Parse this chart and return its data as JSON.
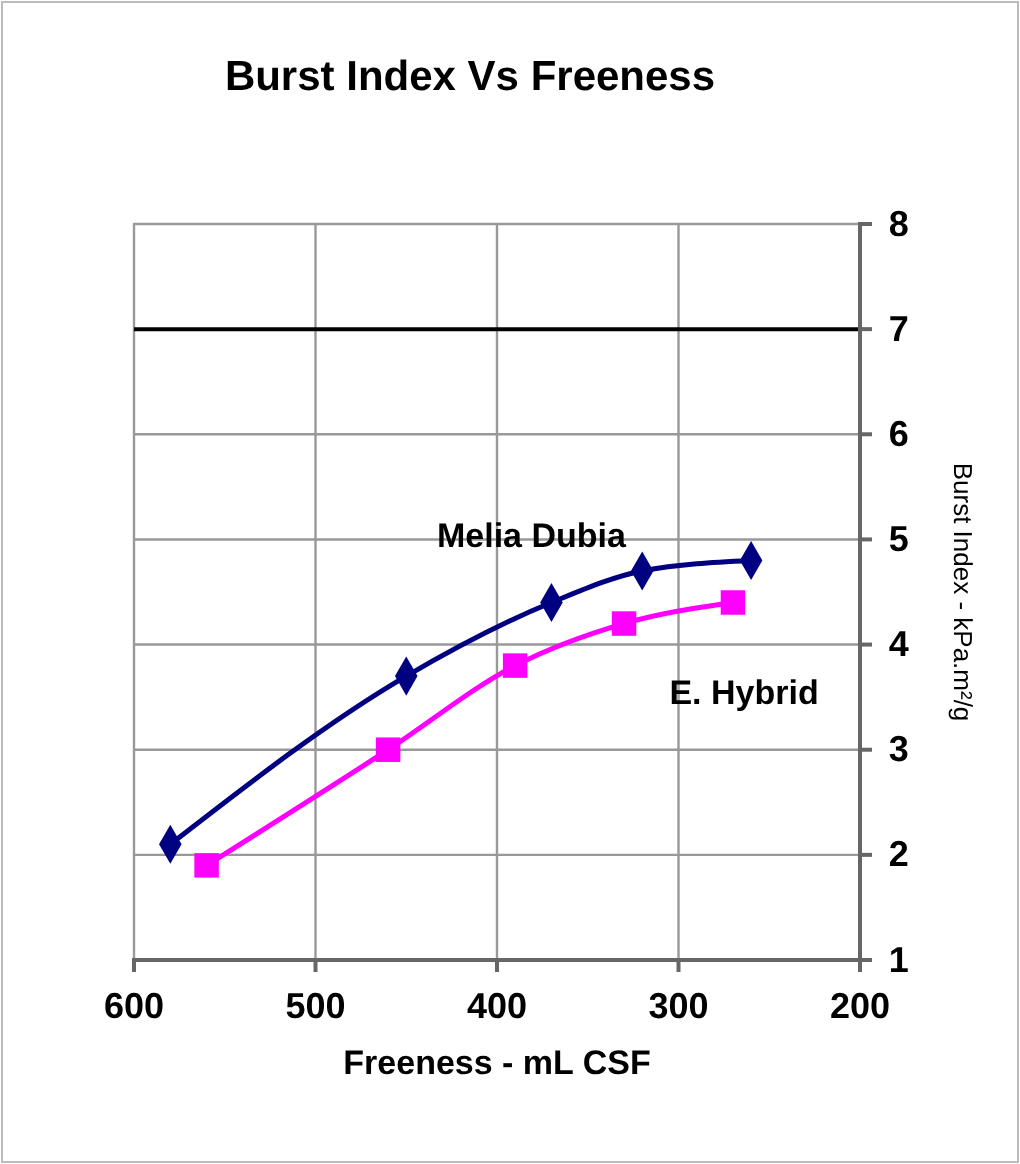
{
  "chart_data": {
    "type": "line",
    "title": "Burst Index Vs Freeness",
    "xlabel": "Freeness - mL CSF",
    "ylabel": "Burst Index - kPa.m²/g",
    "xlim": [
      600,
      200
    ],
    "xticks": [
      600,
      500,
      400,
      300,
      200
    ],
    "ylim": [
      1,
      8
    ],
    "yticks": [
      1,
      2,
      3,
      4,
      5,
      6,
      7,
      8
    ],
    "grid": true,
    "ref_lines": [
      {
        "axis": "y",
        "value": 7,
        "color": "#000000"
      }
    ],
    "series": [
      {
        "name": "Melia Dubia",
        "color": "#000080",
        "marker": "diamond",
        "x": [
          580,
          450,
          370,
          320,
          260
        ],
        "values": [
          2.1,
          3.7,
          4.4,
          4.7,
          4.8
        ]
      },
      {
        "name": "E. Hybrid",
        "color": "#ff00ff",
        "marker": "square",
        "x": [
          560,
          460,
          390,
          330,
          270
        ],
        "values": [
          1.9,
          3.0,
          3.8,
          4.2,
          4.4
        ]
      }
    ]
  }
}
